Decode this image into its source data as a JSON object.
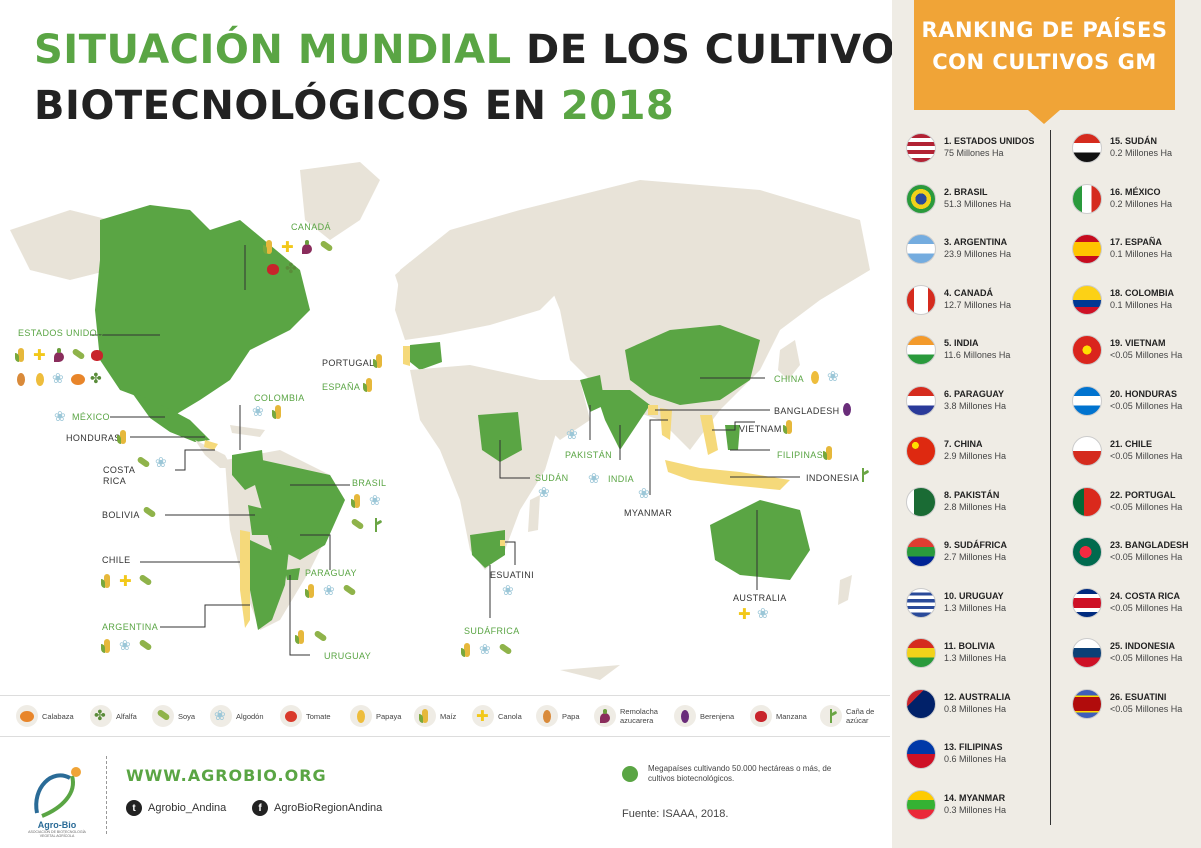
{
  "title": {
    "line1_green": "SITUACIÓN MUNDIAL",
    "line1_dark": " DE LOS CULTIVOS",
    "line2_dark": "BIOTECNOLÓGICOS EN ",
    "line2_green": "2018"
  },
  "colors": {
    "gm_country": "#5aa544",
    "land": "#e8e3d8",
    "mini_country": "#f5d97a",
    "ranking_header": "#f0a437",
    "ranking_bg": "#efece5"
  },
  "map_labels": {
    "canada": "CANADÁ",
    "estados_unidos": "ESTADOS UNIDOS",
    "mexico": "MÉXICO",
    "honduras": "HONDURAS",
    "costa_rica_1": "COSTA",
    "costa_rica_2": "RICA",
    "colombia": "COLOMBIA",
    "bolivia": "BOLIVIA",
    "brasil": "BRASIL",
    "chile": "CHILE",
    "paraguay": "PARAGUAY",
    "argentina": "ARGENTINA",
    "uruguay": "URUGUAY",
    "portugal": "PORTUGAL",
    "espana": "ESPAÑA",
    "sudan": "SUDÁN",
    "pakistan": "PAKISTÁN",
    "india": "INDIA",
    "china": "CHINA",
    "bangladesh": "BANGLADESH",
    "vietnam": "VIETNAM",
    "filipinas": "FILIPINAS",
    "indonesia": "INDONESIA",
    "myanmar": "MYANMAR",
    "esuatini": "ESUATINI",
    "sudafrica": "SUDÁFRICA",
    "australia": "AUSTRALIA"
  },
  "legend": [
    {
      "icon": "pumpkin-icon",
      "label": "Calabaza"
    },
    {
      "icon": "alfalfa-icon",
      "label": "Alfalfa"
    },
    {
      "icon": "soy-icon",
      "label": "Soya"
    },
    {
      "icon": "cotton-icon",
      "label": "Algodón"
    },
    {
      "icon": "tomato-icon",
      "label": "Tomate"
    },
    {
      "icon": "papaya-icon",
      "label": "Papaya"
    },
    {
      "icon": "corn-icon",
      "label": "Maíz"
    },
    {
      "icon": "canola-icon",
      "label": "Canola"
    },
    {
      "icon": "potato-icon",
      "label": "Papa"
    },
    {
      "icon": "beet-icon",
      "label": "Remolacha azucarera"
    },
    {
      "icon": "eggplant-icon",
      "label": "Berenjena"
    },
    {
      "icon": "apple-icon",
      "label": "Manzana"
    },
    {
      "icon": "sugarcane-icon",
      "label": "Caña de azúcar"
    }
  ],
  "footer": {
    "logo_name": "Agro-Bio",
    "logo_sub": "ASOCIACIÓN DE BIOTECNOLOGÍA VEGETAL AGRÍCOLA",
    "website": "WWW.AGROBIO.ORG",
    "twitter": "Agrobio_Andina",
    "facebook": "AgroBioRegionAndina",
    "megacountries": "Megapaíses cultivando 50.000 hectáreas o más, de cultivos biotecnológicos.",
    "source": "Fuente: ISAAA, 2018."
  },
  "ranking": {
    "header_line1": "RANKING DE PAÍSES",
    "header_line2": "CON CULTIVOS GM",
    "left": [
      {
        "name": "1. ESTADOS UNIDOS",
        "ha": "75 Millones Ha"
      },
      {
        "name": "2. BRASIL",
        "ha": "51.3 Millones Ha"
      },
      {
        "name": "3. ARGENTINA",
        "ha": "23.9 Millones Ha"
      },
      {
        "name": "4. CANADÁ",
        "ha": "12.7 Millones Ha"
      },
      {
        "name": "5. INDIA",
        "ha": "11.6 Millones Ha"
      },
      {
        "name": "6. PARAGUAY",
        "ha": "3.8 Millones Ha"
      },
      {
        "name": "7. CHINA",
        "ha": "2.9 Millones Ha"
      },
      {
        "name": "8. PAKISTÁN",
        "ha": "2.8 Millones Ha"
      },
      {
        "name": "9. SUDÁFRICA",
        "ha": "2.7 Millones Ha"
      },
      {
        "name": "10. URUGUAY",
        "ha": "1.3 Millones Ha"
      },
      {
        "name": "11. BOLIVIA",
        "ha": "1.3 Millones Ha"
      },
      {
        "name": "12. AUSTRALIA",
        "ha": "0.8 Millones Ha"
      },
      {
        "name": "13. FILIPINAS",
        "ha": "0.6 Millones Ha"
      },
      {
        "name": "14. MYANMAR",
        "ha": "0.3 Millones Ha"
      }
    ],
    "right": [
      {
        "name": "15. SUDÁN",
        "ha": "0.2 Millones Ha"
      },
      {
        "name": "16. MÉXICO",
        "ha": "0.2 Millones Ha"
      },
      {
        "name": "17. ESPAÑA",
        "ha": "0.1 Millones Ha"
      },
      {
        "name": "18. COLOMBIA",
        "ha": "0.1 Millones Ha"
      },
      {
        "name": "19. VIETNAM",
        "ha": "<0.05 Millones Ha"
      },
      {
        "name": "20. HONDURAS",
        "ha": "<0.05 Millones Ha"
      },
      {
        "name": "21. CHILE",
        "ha": "<0.05 Millones Ha"
      },
      {
        "name": "22. PORTUGAL",
        "ha": "<0.05 Millones Ha"
      },
      {
        "name": "23. BANGLADESH",
        "ha": "<0.05 Millones Ha"
      },
      {
        "name": "24. COSTA RICA",
        "ha": "<0.05 Millones Ha"
      },
      {
        "name": "25. INDONESIA",
        "ha": "<0.05 Millones Ha"
      },
      {
        "name": "26. ESUATINI",
        "ha": "<0.05 Millones Ha"
      }
    ]
  }
}
